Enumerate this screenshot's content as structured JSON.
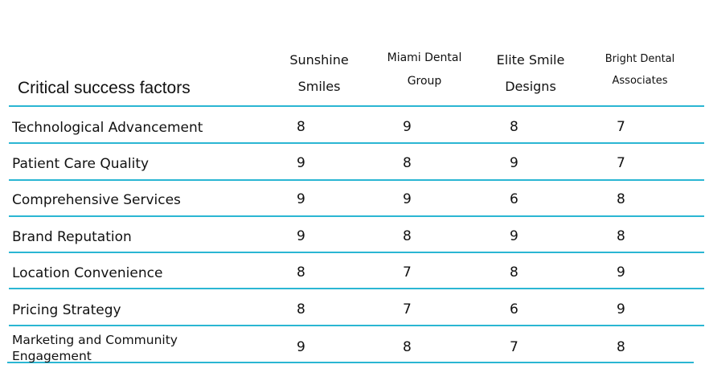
{
  "table": {
    "title": "Critical success factors",
    "columns": [
      [
        "Sunshine",
        "Smiles"
      ],
      [
        "Miami Dental",
        "Group"
      ],
      [
        "Elite Smile",
        "Designs"
      ],
      [
        "Bright Dental",
        "Associates"
      ]
    ],
    "rows": [
      {
        "label": "Technological Advancement",
        "values": [
          "8",
          "9",
          "8",
          "7"
        ]
      },
      {
        "label": "Patient Care Quality",
        "values": [
          "9",
          "8",
          "9",
          "7"
        ]
      },
      {
        "label": "Comprehensive Services",
        "values": [
          "9",
          "9",
          "6",
          "8"
        ]
      },
      {
        "label": "Brand Reputation",
        "values": [
          "9",
          "8",
          "9",
          "8"
        ]
      },
      {
        "label": "Location Convenience",
        "values": [
          "8",
          "7",
          "8",
          "9"
        ]
      },
      {
        "label": "Pricing Strategy",
        "values": [
          "8",
          "7",
          "6",
          "9"
        ]
      },
      {
        "label": "Marketing and Community Engagement",
        "values": [
          "9",
          "8",
          "7",
          "8"
        ]
      }
    ],
    "line_color": "#2bb6d3"
  }
}
